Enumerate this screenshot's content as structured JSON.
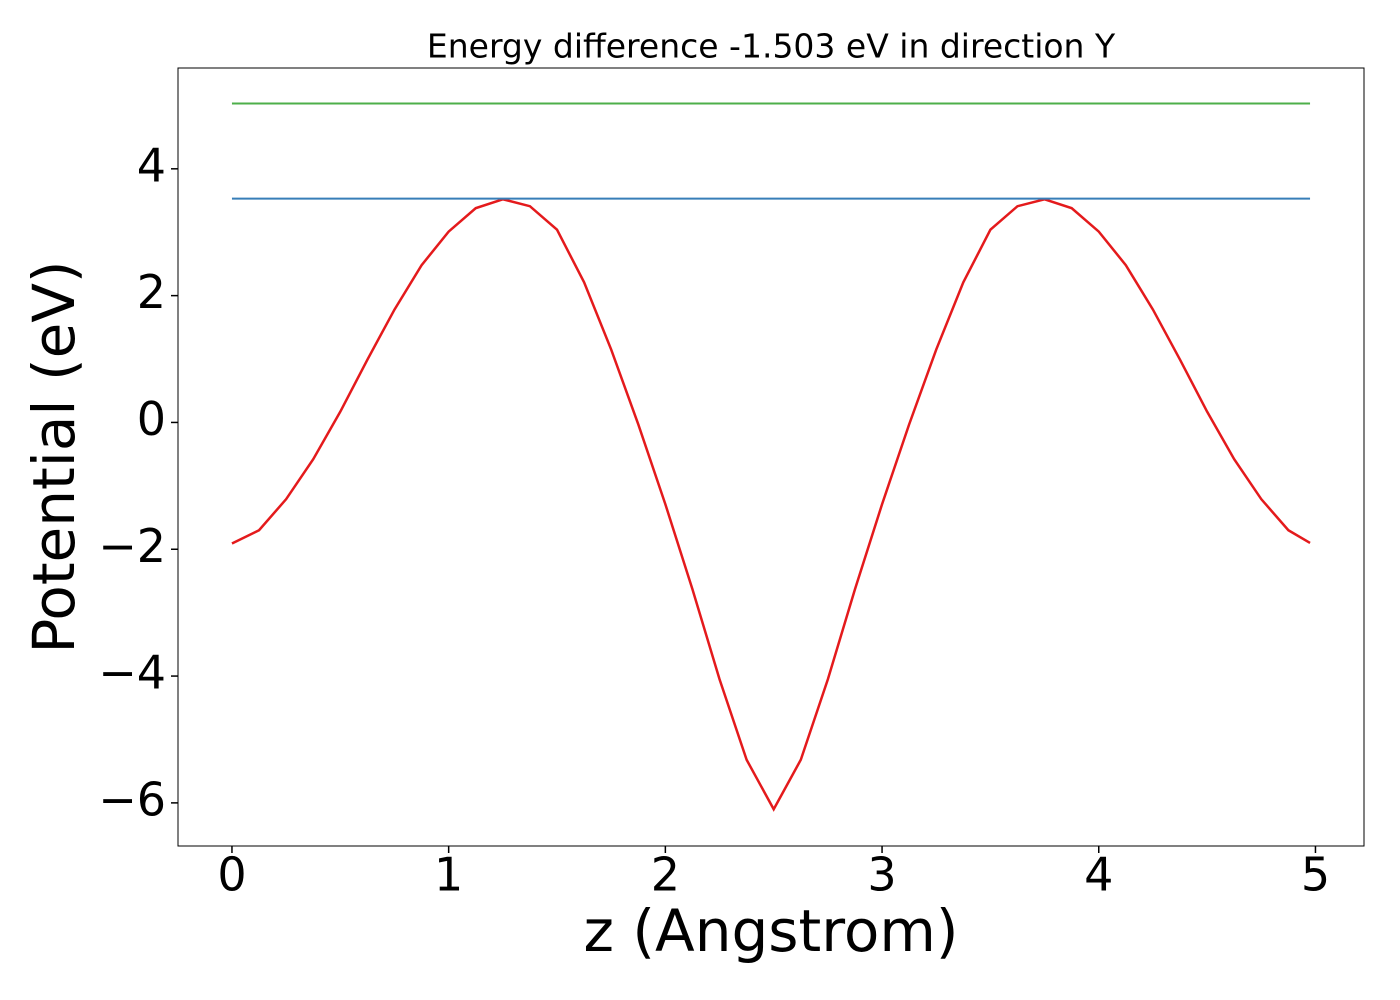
{
  "chart_data": {
    "type": "line",
    "title": "Energy difference -1.503 eV in direction Y",
    "x_label": "z (Angstrom)",
    "y_label": "Potential (eV)",
    "xlim": [
      -0.249,
      5.224
    ],
    "ylim": [
      -6.68,
      5.59
    ],
    "xticks": [
      0,
      1,
      2,
      3,
      4,
      5
    ],
    "yticks": [
      {
        "value": -6,
        "label": "−6"
      },
      {
        "value": -4,
        "label": "−4"
      },
      {
        "value": -2,
        "label": "−2"
      },
      0,
      2,
      4
    ],
    "grid": false,
    "series": [
      {
        "color": "#e41a1c",
        "x": [
          0,
          0.125,
          0.25,
          0.375,
          0.5,
          0.625,
          0.75,
          0.875,
          1.0,
          1.125,
          1.25,
          1.375,
          1.5,
          1.625,
          1.75,
          1.875,
          2.0,
          2.125,
          2.25,
          2.375,
          2.5,
          2.625,
          2.75,
          2.875,
          3.0,
          3.125,
          3.25,
          3.375,
          3.5,
          3.625,
          3.75,
          3.875,
          4.0,
          4.125,
          4.25,
          4.375,
          4.5,
          4.625,
          4.75,
          4.875,
          4.975
        ],
        "values": [
          -1.91,
          -1.7,
          -1.21,
          -0.58,
          0.17,
          0.99,
          1.78,
          2.48,
          3.01,
          3.38,
          3.52,
          3.41,
          3.04,
          2.21,
          1.15,
          -0.03,
          -1.29,
          -2.63,
          -4.05,
          -5.32,
          -6.1,
          -5.32,
          -4.05,
          -2.63,
          -1.29,
          -0.03,
          1.15,
          2.21,
          3.04,
          3.41,
          3.52,
          3.38,
          3.01,
          2.48,
          1.78,
          0.99,
          0.17,
          -0.58,
          -1.21,
          -1.7,
          -1.9
        ]
      },
      {
        "color": "#377eb8",
        "x": [
          0,
          4.975
        ],
        "values": [
          3.53,
          3.53
        ]
      },
      {
        "color": "#4daf4a",
        "x": [
          0,
          4.975
        ],
        "values": [
          5.03,
          5.03
        ]
      }
    ]
  }
}
